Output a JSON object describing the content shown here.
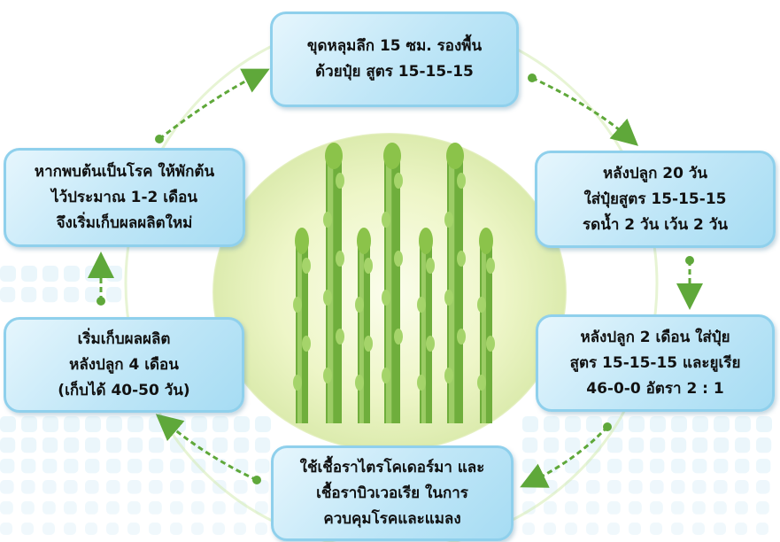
{
  "steps": [
    {
      "lines": [
        "ขุดหลุมลึก 15 ซม. รองพื้น",
        "ด้วยปุ๋ย สูตร 15-15-15"
      ]
    },
    {
      "lines": [
        "หลังปลูก 20 วัน",
        "ใส่ปุ๋ยสูตร 15-15-15",
        "รดน้ำ 2 วัน  เว้น 2 วัน"
      ]
    },
    {
      "lines": [
        "หลังปลูก 2 เดือน ใส่ปุ๋ย",
        "สูตร 15-15-15 และยูเรีย",
        "46-0-0 อัตรา 2 : 1"
      ]
    },
    {
      "lines": [
        "ใช้เชื้อราไตรโคเดอร์มา และ",
        "เชื้อราบิวเวอเรีย ในการ",
        "ควบคุมโรคและแมลง"
      ]
    },
    {
      "lines": [
        "เริ่มเก็บผลผลิต",
        "หลังปลูก 4 เดือน",
        "(เก็บได้ 40-50 วัน)"
      ]
    },
    {
      "lines": [
        "หากพบต้นเป็นโรค ให้พักต้น",
        "ไว้ประมาณ 1-2 เดือน",
        "จึงเริ่มเก็บผลผลิตใหม่"
      ]
    }
  ],
  "colors": {
    "box_border": "#8fd0ec",
    "box_fill": "#bfe6f7",
    "arrow": "#5fa83a",
    "ring": "#d4ebb0",
    "asparagus": "#7cb342",
    "background_dots": "#d9eef8"
  },
  "center_image": "asparagus-icon"
}
